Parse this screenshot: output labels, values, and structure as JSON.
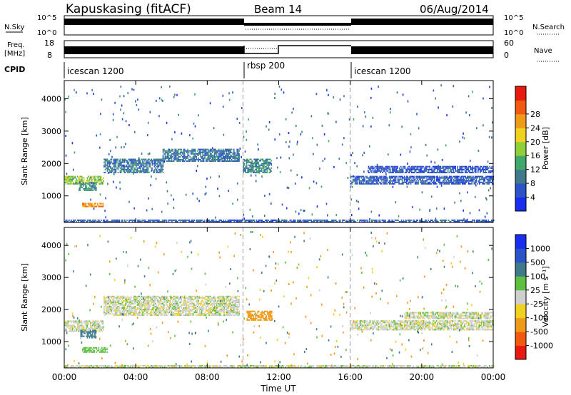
{
  "header": {
    "site": "Kapuskasing (fitACF)",
    "beam": "Beam 14",
    "date": "06/Aug/2014"
  },
  "top_panels": {
    "nsky": {
      "label": "N.Sky",
      "yticks": [
        "10^5",
        "10^0"
      ],
      "right_label": "N.Search",
      "right_yticks": [
        "10^5",
        "10^0"
      ]
    },
    "freq": {
      "label_line1": "Freq.",
      "label_line2": "[MHz]",
      "yticks": [
        "18",
        "8"
      ],
      "right_label": "Nave",
      "right_yticks": [
        "60",
        "0"
      ]
    },
    "cpid": {
      "label": "CPID",
      "segments": [
        "icescan 1200",
        "rbsp 200",
        "icescan 1200"
      ]
    }
  },
  "panels": {
    "power": {
      "ylabel": "Slant Range [km]",
      "cbar_label": "Power [dB]",
      "cbar_ticks": [
        "4",
        "8",
        "12",
        "16",
        "20",
        "24",
        "28"
      ]
    },
    "velocity": {
      "ylabel": "Slant Range [km]",
      "cbar_label": "Velocity [m s⁻¹]",
      "cbar_ticks": [
        "-1000",
        "-500",
        "-100",
        "-25",
        "25",
        "100",
        "500",
        "1000"
      ]
    }
  },
  "xaxis": {
    "label": "Time UT",
    "ticks": [
      "00:00",
      "04:00",
      "08:00",
      "12:00",
      "16:00",
      "20:00",
      "00:00"
    ]
  },
  "colors": {
    "power_scale": [
      "#1a2ef0",
      "#2a54c8",
      "#3f7a8c",
      "#3fa86a",
      "#8fd03a",
      "#f0d020",
      "#f09a1a",
      "#f05a10",
      "#e81a10"
    ],
    "velocity_scale": [
      "#e81a10",
      "#f05a10",
      "#f09a1a",
      "#f0d020",
      "#cfcfcf",
      "#5cc040",
      "#3f7a8c",
      "#2a54c8",
      "#1a2ef0"
    ]
  },
  "chart_data": [
    {
      "type": "heatmap",
      "name": "power",
      "xlabel": "Time UT",
      "ylabel": "Slant Range [km]",
      "xlim": [
        0,
        24
      ],
      "ylim": [
        180,
        4560
      ],
      "yticks": [
        1000,
        2000,
        3000,
        4000
      ],
      "colorbar": {
        "label": "Power [dB]",
        "range": [
          0,
          32
        ],
        "ticks": [
          4,
          8,
          12,
          16,
          20,
          24,
          28
        ]
      },
      "bands": [
        {
          "t0": 0.0,
          "t1": 2.2,
          "r0": 1350,
          "r1": 1600,
          "value": 16
        },
        {
          "t0": 0.8,
          "t1": 1.8,
          "r0": 1150,
          "r1": 1400,
          "value": 10
        },
        {
          "t0": 1.0,
          "t1": 2.2,
          "r0": 650,
          "r1": 780,
          "value": 24
        },
        {
          "t0": 2.2,
          "t1": 5.5,
          "r0": 1700,
          "r1": 2150,
          "value": 8
        },
        {
          "t0": 5.5,
          "t1": 9.8,
          "r0": 2050,
          "r1": 2450,
          "value": 8
        },
        {
          "t0": 10.0,
          "t1": 11.6,
          "r0": 1700,
          "r1": 2150,
          "value": 10
        },
        {
          "t0": 16.0,
          "t1": 24.0,
          "r0": 1350,
          "r1": 1600,
          "value": 6
        },
        {
          "t0": 17.0,
          "t1": 24.0,
          "r0": 1700,
          "r1": 1900,
          "value": 5
        },
        {
          "t0": 0.0,
          "t1": 24.0,
          "r0": 180,
          "r1": 270,
          "value": 6
        }
      ]
    },
    {
      "type": "heatmap",
      "name": "velocity",
      "xlabel": "Time UT",
      "ylabel": "Slant Range [km]",
      "xlim": [
        0,
        24
      ],
      "ylim": [
        180,
        4560
      ],
      "yticks": [
        1000,
        2000,
        3000,
        4000
      ],
      "colorbar": {
        "label": "Velocity [m s⁻¹]",
        "ticks": [
          -1000,
          -500,
          -100,
          -25,
          25,
          100,
          500,
          1000
        ]
      },
      "bands": [
        {
          "t0": 0.0,
          "t1": 2.2,
          "r0": 1300,
          "r1": 1650,
          "value": 0
        },
        {
          "t0": 0.9,
          "t1": 1.8,
          "r0": 1100,
          "r1": 1350,
          "value": 300
        },
        {
          "t0": 1.0,
          "t1": 2.4,
          "r0": 650,
          "r1": 800,
          "value": 60
        },
        {
          "t0": 2.2,
          "t1": 9.8,
          "r0": 1800,
          "r1": 2400,
          "value": 0
        },
        {
          "t0": 10.2,
          "t1": 11.6,
          "r0": 1650,
          "r1": 1950,
          "value": -300
        },
        {
          "t0": 16.0,
          "t1": 24.0,
          "r0": 1350,
          "r1": 1650,
          "value": 0
        },
        {
          "t0": 19.0,
          "t1": 24.0,
          "r0": 1700,
          "r1": 1900,
          "value": 0
        },
        {
          "t0": 0.0,
          "t1": 24.0,
          "r0": 180,
          "r1": 270,
          "value": 0
        }
      ]
    }
  ]
}
